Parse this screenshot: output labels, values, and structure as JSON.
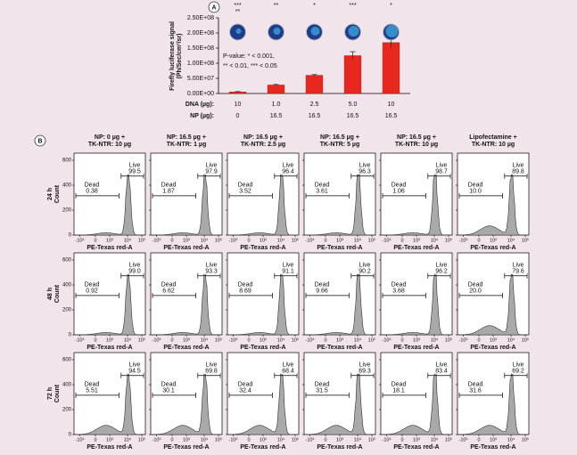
{
  "chart_data": {
    "type": "bar",
    "panel_label": "A",
    "y_label": [
      "Firefly luciferase signal",
      "(Ph/Sec/cm²/sr)"
    ],
    "row_labels": [
      "DNA (µg):",
      "NP (µg):"
    ],
    "categories": [
      "10",
      "1.0",
      "2.5",
      "5.0",
      "10"
    ],
    "np_row": [
      "0",
      "16.5",
      "16.5",
      "16.5",
      "16.5"
    ],
    "values": [
      5000000,
      28000000,
      60000000,
      125000000,
      168000000
    ],
    "errors": [
      1500000,
      2000000,
      2500000,
      13000000,
      17000000
    ],
    "significance": [
      [
        "***",
        "**"
      ],
      [
        "**"
      ],
      [
        "*"
      ],
      [
        "***"
      ],
      [
        "*"
      ]
    ],
    "note": [
      "P-value: * < 0.001,",
      "** < 0.01, *** < 0.05"
    ],
    "color": "#e8281e",
    "ylim": [
      0,
      250000000
    ],
    "yticks": [
      {
        "value": 0,
        "label": "0.00E+00"
      },
      {
        "value": 50000000,
        "label": "5.00E+07"
      },
      {
        "value": 100000000,
        "label": "1.00E+08"
      },
      {
        "value": 150000000,
        "label": "1.50E+08"
      },
      {
        "value": 200000000,
        "label": "2.00E+08"
      },
      {
        "value": 250000000,
        "label": "2.50E+08"
      }
    ]
  },
  "panel_b": {
    "panel_label": "B",
    "columns": [
      [
        "NP: 0 µg +",
        "TK-NTR: 10 µg"
      ],
      [
        "NP: 16.5 µg +",
        "TK-NTR: 1 µg"
      ],
      [
        "NP: 16.5 µg +",
        "TK-NTR: 2.5 µg"
      ],
      [
        "NP: 16.5 µg +",
        "TK-NTR: 5 µg"
      ],
      [
        "NP: 16.5 µg +",
        "TK-NTR: 10 µg"
      ],
      [
        "Lipofectamine +",
        "TK-NTR: 10 µg"
      ]
    ],
    "y_label": "Count",
    "x_label": "PE-Texas red-A",
    "gate_names": [
      "Dead",
      "Live"
    ],
    "yticks": [
      "0",
      "200",
      "400",
      "600"
    ],
    "xticks": [
      "-10³",
      "0",
      "10³",
      "10⁴",
      "10⁵"
    ],
    "rows": [
      {
        "label": "24 h",
        "gates": [
          {
            "dead": "0.38",
            "live": "99.5"
          },
          {
            "dead": "1.87",
            "live": "97.9"
          },
          {
            "dead": "3.52",
            "live": "96.4"
          },
          {
            "dead": "3.61",
            "live": "96.3"
          },
          {
            "dead": "1.06",
            "live": "98.7"
          },
          {
            "dead": "10.0",
            "live": "89.8"
          }
        ]
      },
      {
        "label": "48 h",
        "gates": [
          {
            "dead": "0.92",
            "live": "99.0"
          },
          {
            "dead": "6.62",
            "live": "93.3"
          },
          {
            "dead": "8.69",
            "live": "91.1"
          },
          {
            "dead": "9.66",
            "live": "90.2"
          },
          {
            "dead": "3.68",
            "live": "96.2"
          },
          {
            "dead": "20.0",
            "live": "79.6"
          }
        ]
      },
      {
        "label": "72 h",
        "gates": [
          {
            "dead": "5.51",
            "live": "94.5"
          },
          {
            "dead": "30.1",
            "live": "69.8"
          },
          {
            "dead": "32.4",
            "live": "68.4"
          },
          {
            "dead": "31.5",
            "live": "69.3"
          },
          {
            "dead": "18.1",
            "live": "83.4"
          },
          {
            "dead": "31.6",
            "live": "69.2"
          }
        ]
      }
    ]
  }
}
